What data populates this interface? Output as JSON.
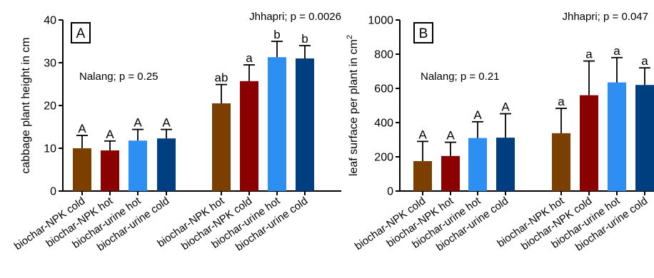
{
  "chart_data": [
    {
      "type": "bar",
      "panel_label": "A",
      "ylabel": "cabbage plant height in cm",
      "ylim": [
        0,
        40
      ],
      "yticks": [
        0,
        10,
        20,
        30,
        40
      ],
      "categories": [
        "biochar-NPK cold",
        "biochar-NPK hot",
        "biochar-urine hot",
        "biochar-urine cold",
        "biochar-NPK hot",
        "biochar-NPK cold",
        "biochar-urine hot",
        "biochar-urine cold"
      ],
      "groups": [
        {
          "annotation": "Nalang; p = 0.25",
          "values": [
            10.0,
            9.5,
            11.8,
            12.3
          ],
          "errors": [
            3.0,
            2.2,
            2.6,
            2.1
          ],
          "letters": [
            "A",
            "A",
            "A",
            "A"
          ]
        },
        {
          "annotation": "Jhhapri; p = 0.0026",
          "values": [
            20.5,
            25.7,
            31.3,
            31.0
          ],
          "errors": [
            4.4,
            3.8,
            3.7,
            3.0
          ],
          "letters": [
            "ab",
            "a",
            "b",
            "b"
          ]
        }
      ],
      "colors": [
        "#7B3F00",
        "#8B0000",
        "#2E8FF2",
        "#003F7F"
      ]
    },
    {
      "type": "bar",
      "panel_label": "B",
      "ylabel": "leaf surface per plant in cm",
      "ylabel_superscript": "2",
      "ylim": [
        0,
        1000
      ],
      "yticks": [
        0,
        200,
        400,
        600,
        800,
        1000
      ],
      "categories": [
        "biochar-NPK cold",
        "biochar-NPK hot",
        "biochar-urine hot",
        "biochar-urine cold",
        "biochar-NPK hot",
        "biochar-NPK cold",
        "biochar-urine hot",
        "biochar-urine cold"
      ],
      "groups": [
        {
          "annotation": "Nalang; p = 0.21",
          "values": [
            175,
            205,
            310,
            312
          ],
          "errors": [
            115,
            80,
            95,
            140
          ],
          "letters": [
            "A",
            "A",
            "A",
            "A"
          ]
        },
        {
          "annotation": "Jhhapri; p = 0.047",
          "values": [
            338,
            560,
            635,
            620
          ],
          "errors": [
            145,
            200,
            145,
            100
          ],
          "letters": [
            "a",
            "a",
            "a",
            "a"
          ]
        }
      ],
      "colors": [
        "#7B3F00",
        "#8B0000",
        "#2E8FF2",
        "#003F7F"
      ]
    }
  ]
}
